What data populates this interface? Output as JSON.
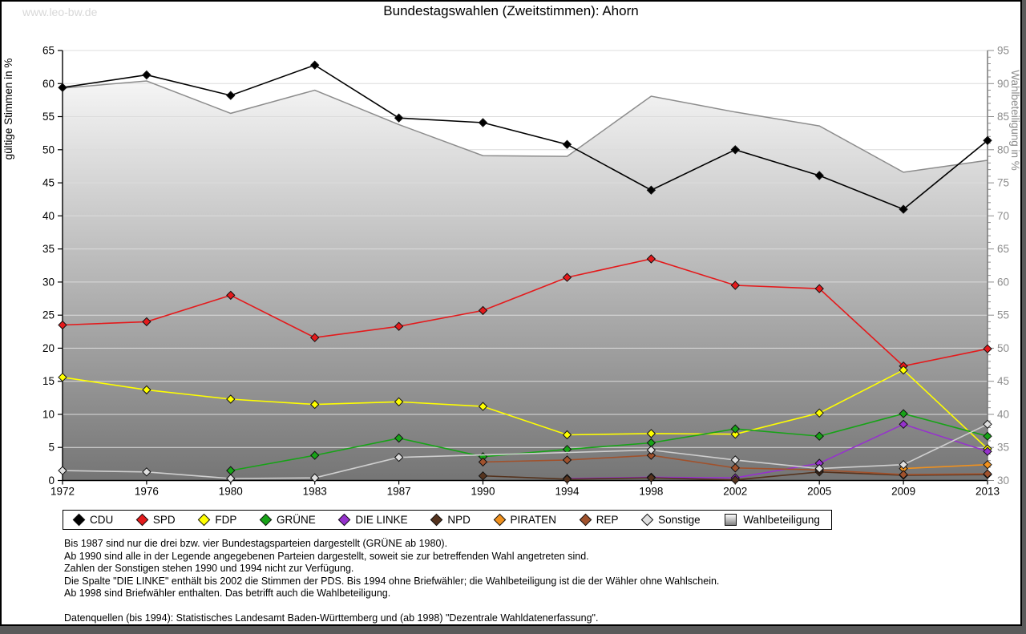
{
  "watermark": "www.leo-bw.de",
  "header": {
    "title": "Bundestagswahlen (Zweitstimmen): Ahorn"
  },
  "chart_data": {
    "type": "line",
    "title": "Bundestagswahlen (Zweitstimmen): Ahorn",
    "x_categories": [
      "1972",
      "1976",
      "1980",
      "1983",
      "1987",
      "1990",
      "1994",
      "1998",
      "2002",
      "2005",
      "2009",
      "2013"
    ],
    "left_axis": {
      "label": "gültige Stimmen in %",
      "min": 0,
      "max": 65,
      "tick_step": 5
    },
    "right_axis": {
      "label": "Wahlbeteiligung in %",
      "min": 30,
      "max": 95,
      "tick_step": 5,
      "minor_tick_step": 1
    },
    "grid": true,
    "legend_position": "bottom",
    "series": [
      {
        "name": "Wahlbeteiligung",
        "axis": "right",
        "style": "area",
        "color": "#8c8c8c",
        "fill_gradient": [
          "#ffffff",
          "#757575"
        ],
        "values": [
          89.3,
          90.4,
          85.5,
          89.0,
          83.8,
          79.1,
          79.0,
          88.1,
          85.7,
          83.6,
          76.6,
          78.4
        ]
      },
      {
        "name": "CDU",
        "axis": "left",
        "color": "#000000",
        "values": [
          59.4,
          61.3,
          58.2,
          62.8,
          54.8,
          54.1,
          50.8,
          43.9,
          50.0,
          46.1,
          41.0,
          51.4
        ]
      },
      {
        "name": "SPD",
        "axis": "left",
        "color": "#e41a1c",
        "values": [
          23.5,
          24.0,
          28.0,
          21.6,
          23.3,
          25.7,
          30.7,
          33.5,
          29.5,
          29.0,
          17.3,
          19.9
        ]
      },
      {
        "name": "FDP",
        "axis": "left",
        "color": "#ffff00",
        "values": [
          15.6,
          13.7,
          12.3,
          11.5,
          11.9,
          11.2,
          6.9,
          7.1,
          7.0,
          10.2,
          16.7,
          4.8
        ]
      },
      {
        "name": "GRÜNE",
        "axis": "left",
        "color": "#17a317",
        "values": [
          null,
          null,
          1.5,
          3.8,
          6.4,
          3.6,
          4.7,
          5.7,
          7.8,
          6.7,
          10.1,
          6.7
        ]
      },
      {
        "name": "DIE LINKE",
        "axis": "left",
        "color": "#9632cd",
        "values": [
          null,
          null,
          null,
          null,
          null,
          null,
          0.3,
          0.5,
          0.4,
          2.6,
          8.5,
          4.4
        ]
      },
      {
        "name": "NPD",
        "axis": "left",
        "color": "#55331e",
        "values": [
          null,
          null,
          null,
          null,
          null,
          0.7,
          0.2,
          0.4,
          0.1,
          1.3,
          0.8,
          0.9
        ]
      },
      {
        "name": "PIRATEN",
        "axis": "left",
        "color": "#f0911e",
        "values": [
          null,
          null,
          null,
          null,
          null,
          null,
          null,
          null,
          null,
          null,
          1.8,
          2.4
        ]
      },
      {
        "name": "REP",
        "axis": "left",
        "color": "#a0522d",
        "values": [
          null,
          null,
          null,
          null,
          null,
          2.8,
          3.1,
          3.8,
          1.9,
          1.6,
          0.9,
          1.0
        ]
      },
      {
        "name": "Sonstige",
        "axis": "left",
        "color": "#e0e0e0",
        "line_color": "#cfcfcf",
        "values": [
          1.5,
          1.3,
          0.3,
          0.4,
          3.5,
          null,
          null,
          4.6,
          3.1,
          1.8,
          2.4,
          8.5
        ]
      }
    ]
  },
  "legend": {
    "items": [
      {
        "label": "CDU",
        "color": "#000000",
        "shape": "diamond"
      },
      {
        "label": "SPD",
        "color": "#e41a1c",
        "shape": "diamond"
      },
      {
        "label": "FDP",
        "color": "#ffff00",
        "shape": "diamond"
      },
      {
        "label": "GRÜNE",
        "color": "#17a317",
        "shape": "diamond"
      },
      {
        "label": "DIE LINKE",
        "color": "#9632cd",
        "shape": "diamond"
      },
      {
        "label": "NPD",
        "color": "#55331e",
        "shape": "diamond"
      },
      {
        "label": "PIRATEN",
        "color": "#f0911e",
        "shape": "diamond"
      },
      {
        "label": "REP",
        "color": "#a0522d",
        "shape": "diamond"
      },
      {
        "label": "Sonstige",
        "color": "#e0e0e0",
        "shape": "diamond"
      },
      {
        "label": "Wahlbeteiligung",
        "color": "#8c8c8c",
        "shape": "gradient-square"
      }
    ]
  },
  "footnotes": [
    "Bis 1987 sind nur die drei bzw. vier Bundestagsparteien dargestellt (GRÜNE ab 1980).",
    "Ab 1990 sind alle in der Legende angegebenen Parteien dargestellt, soweit sie zur betreffenden Wahl angetreten sind.",
    "Zahlen der Sonstigen stehen 1990 und 1994 nicht zur Verfügung.",
    "Die Spalte \"DIE LINKE\" enthält bis 2002 die Stimmen der PDS. Bis 1994 ohne Briefwähler; die Wahlbeteiligung ist die der Wähler ohne Wahlschein.",
    "Ab 1998 sind Briefwähler enthalten. Das betrifft auch die Wahlbeteiligung.",
    "",
    "Datenquellen (bis 1994): Statistisches Landesamt Baden-Württemberg und (ab 1998) \"Dezentrale Wahldatenerfassung\"."
  ]
}
